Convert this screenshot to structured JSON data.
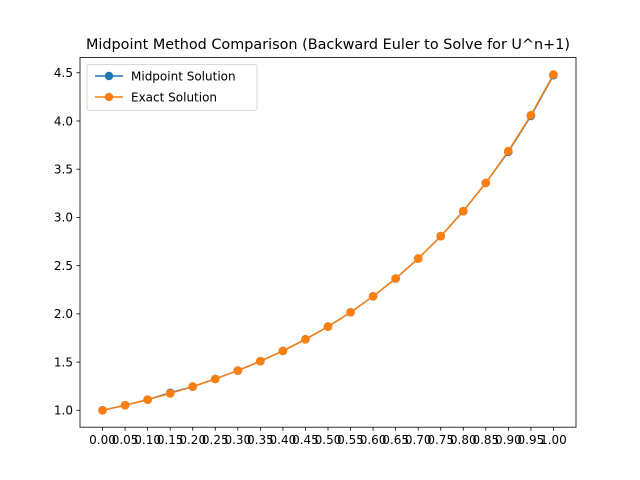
{
  "chart_data": {
    "type": "line",
    "title": "Midpoint Method Comparison (Backward Euler to Solve for U^n+1)",
    "xlabel": "",
    "ylabel": "",
    "x": [
      0.0,
      0.05,
      0.1,
      0.15,
      0.2,
      0.25,
      0.3,
      0.35,
      0.4,
      0.45,
      0.5,
      0.55,
      0.6,
      0.65,
      0.7,
      0.75,
      0.8,
      0.85,
      0.9,
      0.95,
      1.0
    ],
    "x_tick_labels": [
      "0.00",
      "0.05",
      "0.10",
      "0.15",
      "0.20",
      "0.25",
      "0.30",
      "0.35",
      "0.40",
      "0.45",
      "0.50",
      "0.55",
      "0.60",
      "0.65",
      "0.70",
      "0.75",
      "0.80",
      "0.85",
      "0.90",
      "0.95",
      "1.00"
    ],
    "y_ticks": [
      1.0,
      1.5,
      2.0,
      2.5,
      3.0,
      3.5,
      4.0,
      4.5
    ],
    "y_tick_labels": [
      "1.0",
      "1.5",
      "2.0",
      "2.5",
      "3.0",
      "3.5",
      "4.0",
      "4.5"
    ],
    "xlim": [
      -0.05,
      1.05
    ],
    "ylim": [
      0.825,
      4.657
    ],
    "grid": false,
    "legend_position": "upper left",
    "series": [
      {
        "name": "Midpoint Solution",
        "color": "#1f77b4",
        "marker": "o",
        "values": [
          1.0,
          1.053,
          1.111,
          1.182,
          1.246,
          1.325,
          1.412,
          1.509,
          1.616,
          1.736,
          1.868,
          2.016,
          2.182,
          2.366,
          2.573,
          2.805,
          3.065,
          3.358,
          3.68,
          4.052,
          4.474
        ]
      },
      {
        "name": "Exact Solution",
        "color": "#ff7f0e",
        "marker": "o",
        "values": [
          1.0,
          1.053,
          1.111,
          1.175,
          1.246,
          1.325,
          1.412,
          1.509,
          1.616,
          1.736,
          1.868,
          2.016,
          2.182,
          2.366,
          2.573,
          2.805,
          3.065,
          3.358,
          3.688,
          4.06,
          4.482
        ]
      }
    ]
  }
}
